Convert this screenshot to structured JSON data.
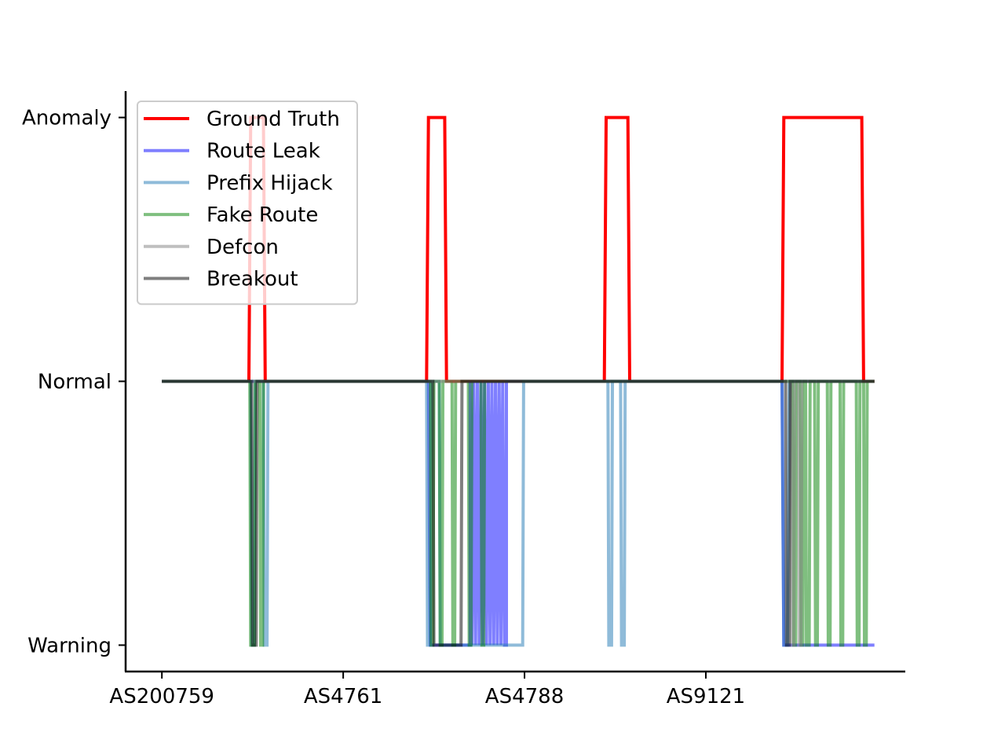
{
  "chart_data": {
    "type": "line",
    "title": "",
    "xlabel": "",
    "ylabel": "",
    "grid": false,
    "legend_position": "top-left",
    "xlim": [
      -0.4,
      8.2
    ],
    "ylim": [
      -1.1,
      1.1
    ],
    "x_ticks": [
      {
        "value": 0,
        "label": "AS200759"
      },
      {
        "value": 2,
        "label": "AS4761"
      },
      {
        "value": 4,
        "label": "AS4788"
      },
      {
        "value": 6,
        "label": "AS9121"
      }
    ],
    "y_ticks": [
      {
        "value": -1,
        "label": "Warning"
      },
      {
        "value": 0,
        "label": "Normal"
      },
      {
        "value": 1,
        "label": "Anomaly"
      }
    ],
    "series": [
      {
        "name": "Ground Truth",
        "color": "#ff0000",
        "opacity": 1,
        "points": [
          [
            0,
            0
          ],
          [
            0.96,
            0
          ],
          [
            0.98,
            1
          ],
          [
            1.12,
            1
          ],
          [
            1.14,
            0
          ],
          [
            2.92,
            0
          ],
          [
            2.94,
            1
          ],
          [
            3.12,
            1
          ],
          [
            3.14,
            0
          ],
          [
            4.88,
            0
          ],
          [
            4.9,
            1
          ],
          [
            5.14,
            1
          ],
          [
            5.16,
            0
          ],
          [
            6.84,
            0
          ],
          [
            6.86,
            1
          ],
          [
            7.72,
            1
          ],
          [
            7.74,
            0
          ],
          [
            7.86,
            0
          ]
        ]
      },
      {
        "name": "Route Leak",
        "color": "#0000ff",
        "opacity": 0.5,
        "points": [
          [
            0,
            0
          ],
          [
            2.94,
            0
          ],
          [
            2.96,
            -1
          ],
          [
            3.4,
            -1
          ],
          [
            3.4,
            0
          ],
          [
            3.42,
            -1
          ],
          [
            3.44,
            0
          ],
          [
            3.46,
            -1
          ],
          [
            3.48,
            0
          ],
          [
            3.5,
            -1
          ],
          [
            3.52,
            0
          ],
          [
            3.54,
            -1
          ],
          [
            3.56,
            0
          ],
          [
            3.58,
            -1
          ],
          [
            3.6,
            0
          ],
          [
            3.62,
            -1
          ],
          [
            3.64,
            0
          ],
          [
            3.66,
            -1
          ],
          [
            3.68,
            0
          ],
          [
            3.7,
            -1
          ],
          [
            3.72,
            0
          ],
          [
            3.74,
            -1
          ],
          [
            3.76,
            0
          ],
          [
            3.78,
            -1
          ],
          [
            3.8,
            -1
          ],
          [
            3.8,
            0
          ],
          [
            6.84,
            0
          ],
          [
            6.86,
            -1
          ],
          [
            7.86,
            -1
          ]
        ]
      },
      {
        "name": "Prefix Hijack",
        "color": "#1f77b4",
        "opacity": 0.5,
        "points": [
          [
            0,
            0
          ],
          [
            0.98,
            0
          ],
          [
            0.99,
            -1
          ],
          [
            1.02,
            -1
          ],
          [
            1.03,
            0
          ],
          [
            1.12,
            0
          ],
          [
            1.13,
            -1
          ],
          [
            1.16,
            -1
          ],
          [
            1.17,
            0
          ],
          [
            2.92,
            0
          ],
          [
            2.93,
            -1
          ],
          [
            2.96,
            -1
          ],
          [
            2.97,
            0
          ],
          [
            3.06,
            0
          ],
          [
            3.07,
            -1
          ],
          [
            3.98,
            -1
          ],
          [
            3.99,
            0
          ],
          [
            4.92,
            0
          ],
          [
            4.93,
            -1
          ],
          [
            4.96,
            -1
          ],
          [
            4.97,
            0
          ],
          [
            5.06,
            0
          ],
          [
            5.07,
            -1
          ],
          [
            5.1,
            -1
          ],
          [
            5.11,
            0
          ],
          [
            6.84,
            0
          ],
          [
            6.86,
            -1
          ],
          [
            6.9,
            -1
          ],
          [
            6.92,
            0
          ],
          [
            7.86,
            0
          ]
        ]
      },
      {
        "name": "Fake Route",
        "color": "#008000",
        "opacity": 0.5,
        "points": [
          [
            0,
            0
          ],
          [
            0.97,
            0
          ],
          [
            0.98,
            -1
          ],
          [
            1.02,
            -1
          ],
          [
            1.03,
            0
          ],
          [
            1.08,
            0
          ],
          [
            1.09,
            -1
          ],
          [
            1.11,
            -1
          ],
          [
            1.12,
            0
          ],
          [
            2.96,
            0
          ],
          [
            2.97,
            -1
          ],
          [
            2.99,
            -1
          ],
          [
            3.0,
            0
          ],
          [
            3.06,
            0
          ],
          [
            3.07,
            -1
          ],
          [
            3.09,
            -1
          ],
          [
            3.1,
            0
          ],
          [
            3.2,
            0
          ],
          [
            3.21,
            -1
          ],
          [
            3.23,
            -1
          ],
          [
            3.24,
            0
          ],
          [
            3.38,
            0
          ],
          [
            3.39,
            -1
          ],
          [
            3.41,
            -1
          ],
          [
            3.42,
            0
          ],
          [
            3.52,
            0
          ],
          [
            3.53,
            -1
          ],
          [
            3.55,
            -1
          ],
          [
            3.56,
            0
          ],
          [
            6.96,
            0
          ],
          [
            6.97,
            -1
          ],
          [
            6.99,
            -1
          ],
          [
            7.0,
            0
          ],
          [
            7.04,
            0
          ],
          [
            7.05,
            -1
          ],
          [
            7.07,
            -1
          ],
          [
            7.08,
            0
          ],
          [
            7.1,
            0
          ],
          [
            7.11,
            -1
          ],
          [
            7.14,
            -1
          ],
          [
            7.15,
            0
          ],
          [
            7.2,
            0
          ],
          [
            7.21,
            -1
          ],
          [
            7.23,
            -1
          ],
          [
            7.24,
            0
          ],
          [
            7.34,
            0
          ],
          [
            7.35,
            -1
          ],
          [
            7.37,
            -1
          ],
          [
            7.38,
            0
          ],
          [
            7.48,
            0
          ],
          [
            7.49,
            -1
          ],
          [
            7.51,
            -1
          ],
          [
            7.52,
            0
          ],
          [
            7.66,
            0
          ],
          [
            7.67,
            -1
          ],
          [
            7.69,
            -1
          ],
          [
            7.7,
            0
          ],
          [
            7.74,
            0
          ],
          [
            7.75,
            -1
          ],
          [
            7.77,
            -1
          ],
          [
            7.78,
            0
          ],
          [
            7.86,
            0
          ]
        ]
      },
      {
        "name": "Defcon",
        "color": "#808080",
        "opacity": 0.5,
        "points": [
          [
            0,
            0
          ],
          [
            6.94,
            0
          ],
          [
            6.95,
            -1
          ],
          [
            6.97,
            -1
          ],
          [
            6.98,
            0
          ],
          [
            7.02,
            0
          ],
          [
            7.03,
            -1
          ],
          [
            7.05,
            -1
          ],
          [
            7.06,
            0
          ],
          [
            7.86,
            0
          ]
        ]
      },
      {
        "name": "Breakout",
        "color": "#000000",
        "opacity": 0.5,
        "points": [
          [
            0,
            0
          ],
          [
            0.99,
            0
          ],
          [
            1.0,
            -1
          ],
          [
            1.04,
            -1
          ],
          [
            1.05,
            0
          ],
          [
            2.99,
            0
          ],
          [
            3.0,
            -1
          ],
          [
            3.3,
            -1
          ],
          [
            3.31,
            0
          ],
          [
            6.88,
            0
          ],
          [
            6.89,
            -1
          ],
          [
            6.92,
            -1
          ],
          [
            6.93,
            0
          ],
          [
            7.86,
            0
          ]
        ]
      }
    ]
  }
}
